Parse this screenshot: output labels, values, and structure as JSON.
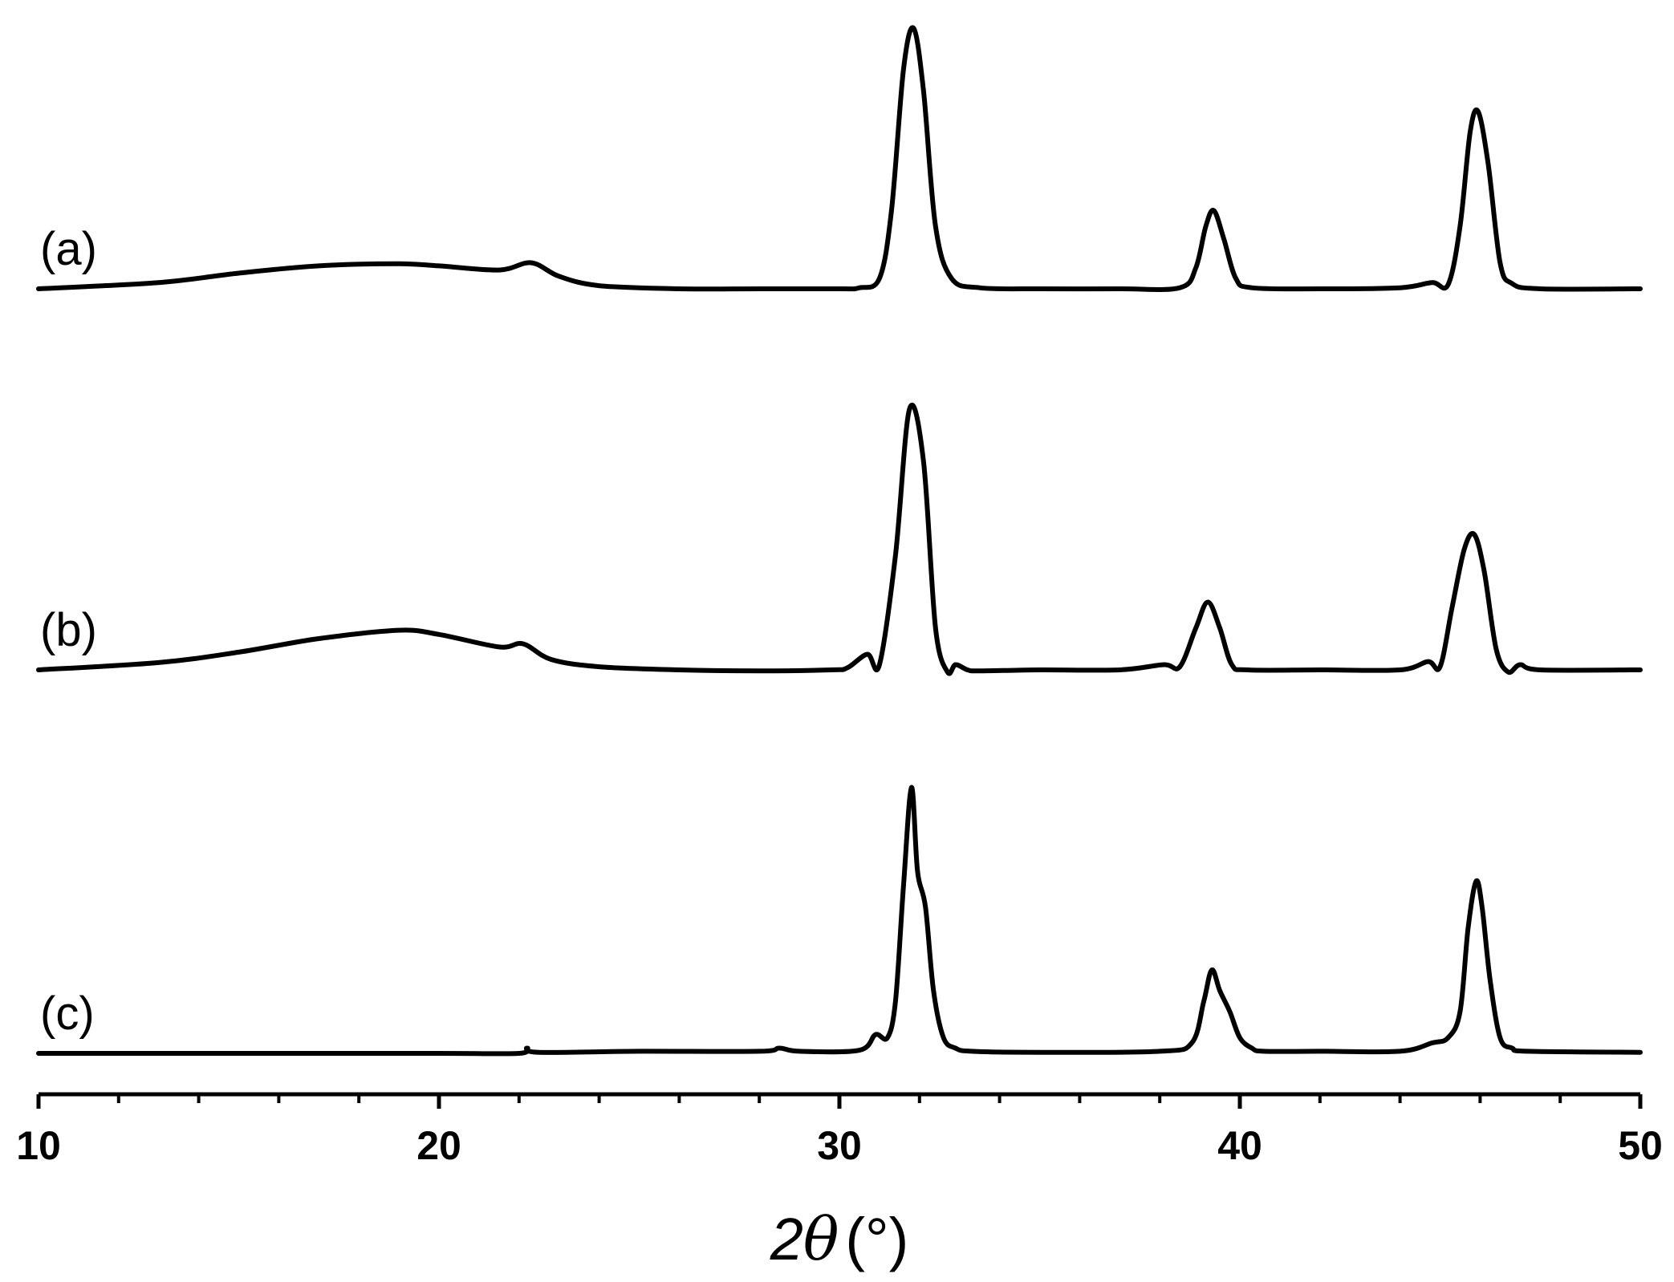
{
  "chart_data": {
    "type": "line",
    "title": "",
    "xlabel": "2θ (°)",
    "xlabel_parts": {
      "prefix": "2",
      "symbol": "θ",
      "unit": "(°)"
    },
    "ylabel": "",
    "xlim": [
      10,
      50
    ],
    "x_major_ticks": [
      10,
      20,
      30,
      40,
      50
    ],
    "x_tick_labels": [
      "10",
      "20",
      "30",
      "40",
      "50"
    ],
    "x_minor_step": 2,
    "y_axis_shown": false,
    "grid": false,
    "line_color": "#000000",
    "series": [
      {
        "name": "(a)",
        "x": [
          10,
          13,
          15,
          17,
          19,
          20,
          21.5,
          22.3,
          23,
          24,
          26,
          28,
          30,
          30.5,
          31,
          31.3,
          31.6,
          31.85,
          32.1,
          32.4,
          32.8,
          33.5,
          35,
          37,
          38.5,
          38.9,
          39.15,
          39.35,
          39.6,
          39.9,
          40.3,
          42,
          44,
          44.8,
          45.2,
          45.5,
          45.75,
          45.95,
          46.2,
          46.5,
          46.8,
          47.5,
          50
        ],
        "y": [
          0,
          6,
          15,
          22,
          24,
          22,
          18,
          25,
          12,
          3,
          0,
          0,
          0,
          1,
          10,
          75,
          210,
          250,
          190,
          60,
          10,
          1,
          0,
          0,
          1,
          20,
          60,
          75,
          48,
          10,
          1,
          0,
          1,
          6,
          4,
          60,
          150,
          170,
          120,
          25,
          5,
          0,
          0
        ]
      },
      {
        "name": "(b)",
        "x": [
          10,
          13,
          15,
          17,
          19,
          20,
          21.5,
          22.1,
          22.8,
          24,
          26,
          28,
          29.8,
          30.2,
          30.7,
          31.0,
          31.4,
          31.75,
          32.1,
          32.4,
          32.7,
          32.9,
          33.2,
          33.5,
          35,
          37,
          38.1,
          38.5,
          38.9,
          39.2,
          39.5,
          39.8,
          40.2,
          42,
          44,
          44.7,
          45.0,
          45.3,
          45.6,
          45.85,
          46.1,
          46.4,
          46.7,
          47.0,
          47.5,
          50
        ],
        "y": [
          0,
          7,
          17,
          30,
          38,
          34,
          22,
          25,
          10,
          3,
          0,
          -1,
          0,
          2,
          15,
          5,
          110,
          250,
          200,
          40,
          -2,
          5,
          0,
          -1,
          0,
          0,
          5,
          3,
          40,
          65,
          40,
          5,
          0,
          0,
          0,
          8,
          3,
          60,
          115,
          130,
          95,
          20,
          -2,
          5,
          0,
          0
        ]
      },
      {
        "name": "(c)",
        "x": [
          10,
          15,
          20,
          22,
          22.2,
          22.5,
          25,
          28,
          28.5,
          29,
          30.5,
          30.9,
          31.2,
          31.4,
          31.6,
          31.8,
          31.95,
          32.15,
          32.35,
          32.6,
          32.9,
          33.3,
          35,
          38,
          38.8,
          39.1,
          39.3,
          39.5,
          39.75,
          40.0,
          40.3,
          40.6,
          42,
          44,
          44.8,
          45.2,
          45.5,
          45.7,
          45.9,
          46.05,
          46.25,
          46.5,
          46.8,
          47.2,
          50
        ],
        "y": [
          0,
          0,
          0,
          0,
          5,
          1,
          2,
          2,
          5,
          2,
          3,
          18,
          15,
          50,
          160,
          255,
          175,
          140,
          60,
          15,
          5,
          2,
          1,
          2,
          10,
          50,
          80,
          60,
          40,
          15,
          5,
          2,
          2,
          2,
          10,
          15,
          40,
          120,
          165,
          140,
          70,
          15,
          5,
          2,
          1
        ]
      }
    ]
  }
}
